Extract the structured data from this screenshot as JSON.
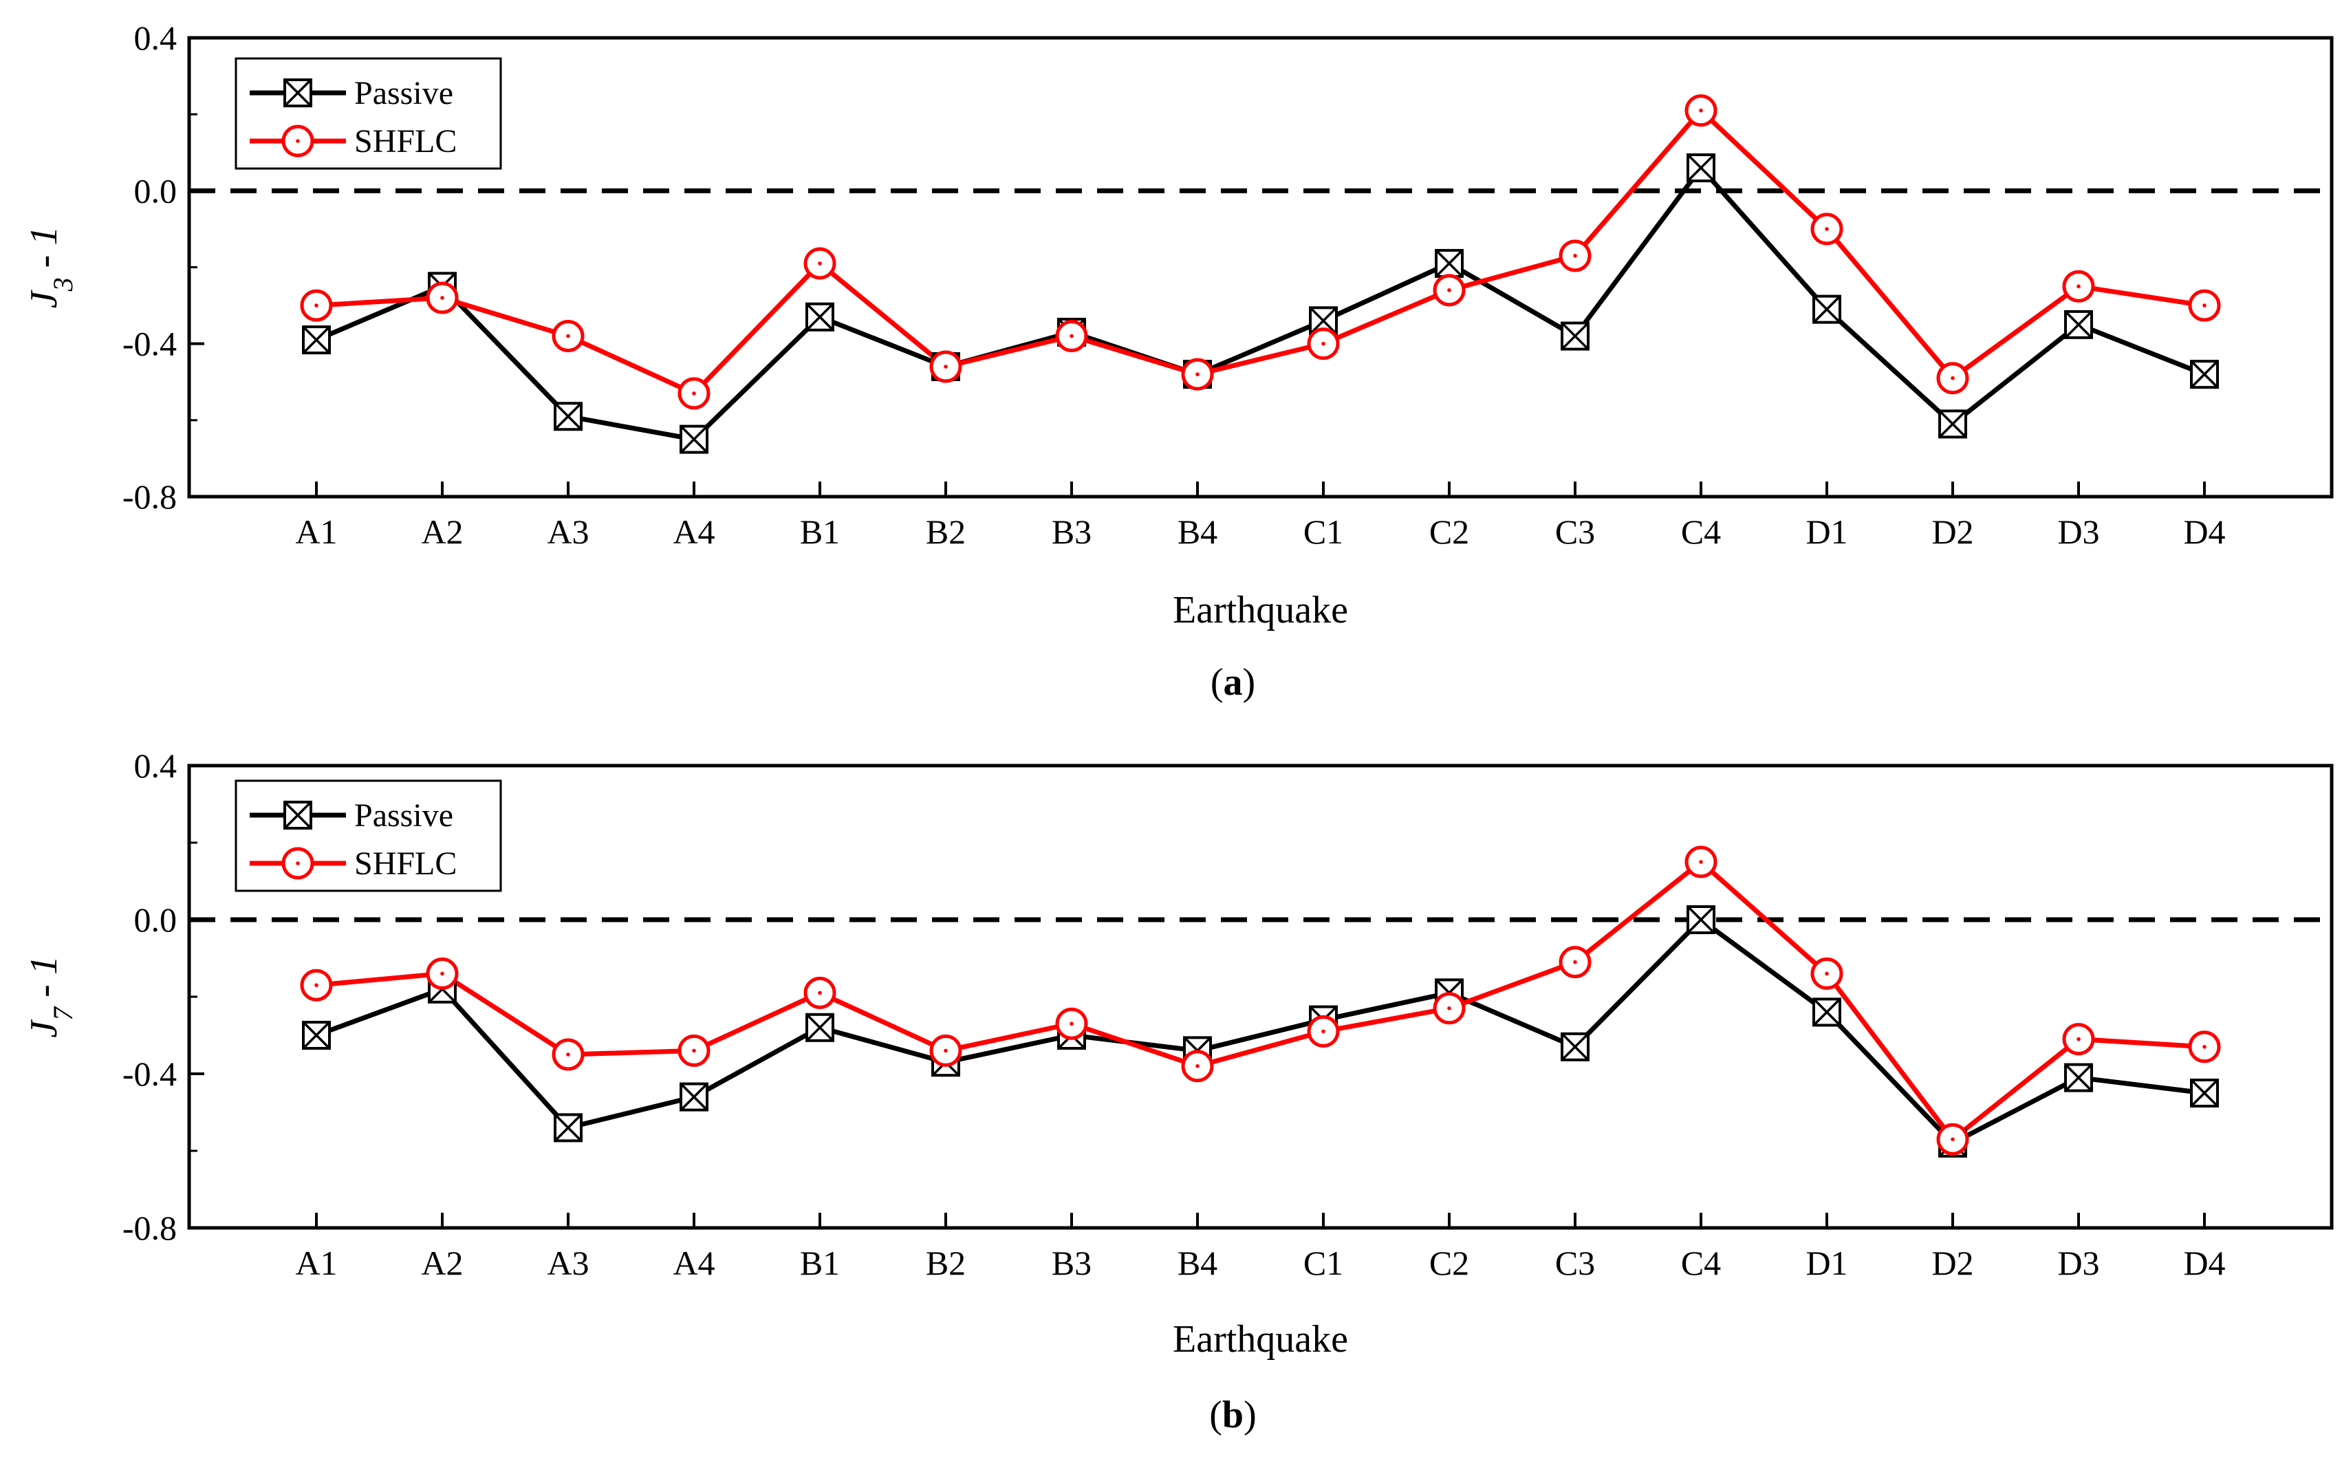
{
  "chart_data": [
    {
      "type": "line",
      "panel_label": "a",
      "title": "",
      "xlabel": "Earthquake",
      "ylabel_main": "J",
      "ylabel_sub": "3",
      "ylabel_suffix": " - 1",
      "ylim": [
        -0.8,
        0.4
      ],
      "yticks": [
        "-0.8",
        "-0.4",
        "0.0",
        "0.4"
      ],
      "reference_line": 0.0,
      "categories": [
        "A1",
        "A2",
        "A3",
        "A4",
        "B1",
        "B2",
        "B3",
        "B4",
        "C1",
        "C2",
        "C3",
        "C4",
        "D1",
        "D2",
        "D3",
        "D4"
      ],
      "legend_position": "top-left",
      "series": [
        {
          "name": "Passive",
          "color": "#000000",
          "marker": "boxed-x",
          "values": [
            -0.39,
            -0.25,
            -0.59,
            -0.65,
            -0.33,
            -0.46,
            -0.37,
            -0.48,
            -0.34,
            -0.19,
            -0.38,
            0.06,
            -0.31,
            -0.61,
            -0.35,
            -0.48
          ]
        },
        {
          "name": "SHFLC",
          "color": "#ff0000",
          "marker": "dotted-circle",
          "values": [
            -0.3,
            -0.28,
            -0.38,
            -0.53,
            -0.19,
            -0.46,
            -0.38,
            -0.48,
            -0.4,
            -0.26,
            -0.17,
            0.21,
            -0.1,
            -0.49,
            -0.25,
            -0.3
          ]
        }
      ]
    },
    {
      "type": "line",
      "panel_label": "b",
      "title": "",
      "xlabel": "Earthquake",
      "ylabel_main": "J",
      "ylabel_sub": "7",
      "ylabel_suffix": " - 1",
      "ylim": [
        -0.8,
        0.4
      ],
      "yticks": [
        "-0.8",
        "-0.4",
        "0.0",
        "0.4"
      ],
      "reference_line": 0.0,
      "categories": [
        "A1",
        "A2",
        "A3",
        "A4",
        "B1",
        "B2",
        "B3",
        "B4",
        "C1",
        "C2",
        "C3",
        "C4",
        "D1",
        "D2",
        "D3",
        "D4"
      ],
      "legend_position": "top-left",
      "series": [
        {
          "name": "Passive",
          "color": "#000000",
          "marker": "boxed-x",
          "values": [
            -0.3,
            -0.18,
            -0.54,
            -0.46,
            -0.28,
            -0.37,
            -0.3,
            -0.34,
            -0.26,
            -0.19,
            -0.33,
            0.0,
            -0.24,
            -0.58,
            -0.41,
            -0.45
          ]
        },
        {
          "name": "SHFLC",
          "color": "#ff0000",
          "marker": "dotted-circle",
          "values": [
            -0.17,
            -0.14,
            -0.35,
            -0.34,
            -0.19,
            -0.34,
            -0.27,
            -0.38,
            -0.29,
            -0.23,
            -0.11,
            0.15,
            -0.14,
            -0.57,
            -0.31,
            -0.33
          ]
        }
      ]
    }
  ]
}
